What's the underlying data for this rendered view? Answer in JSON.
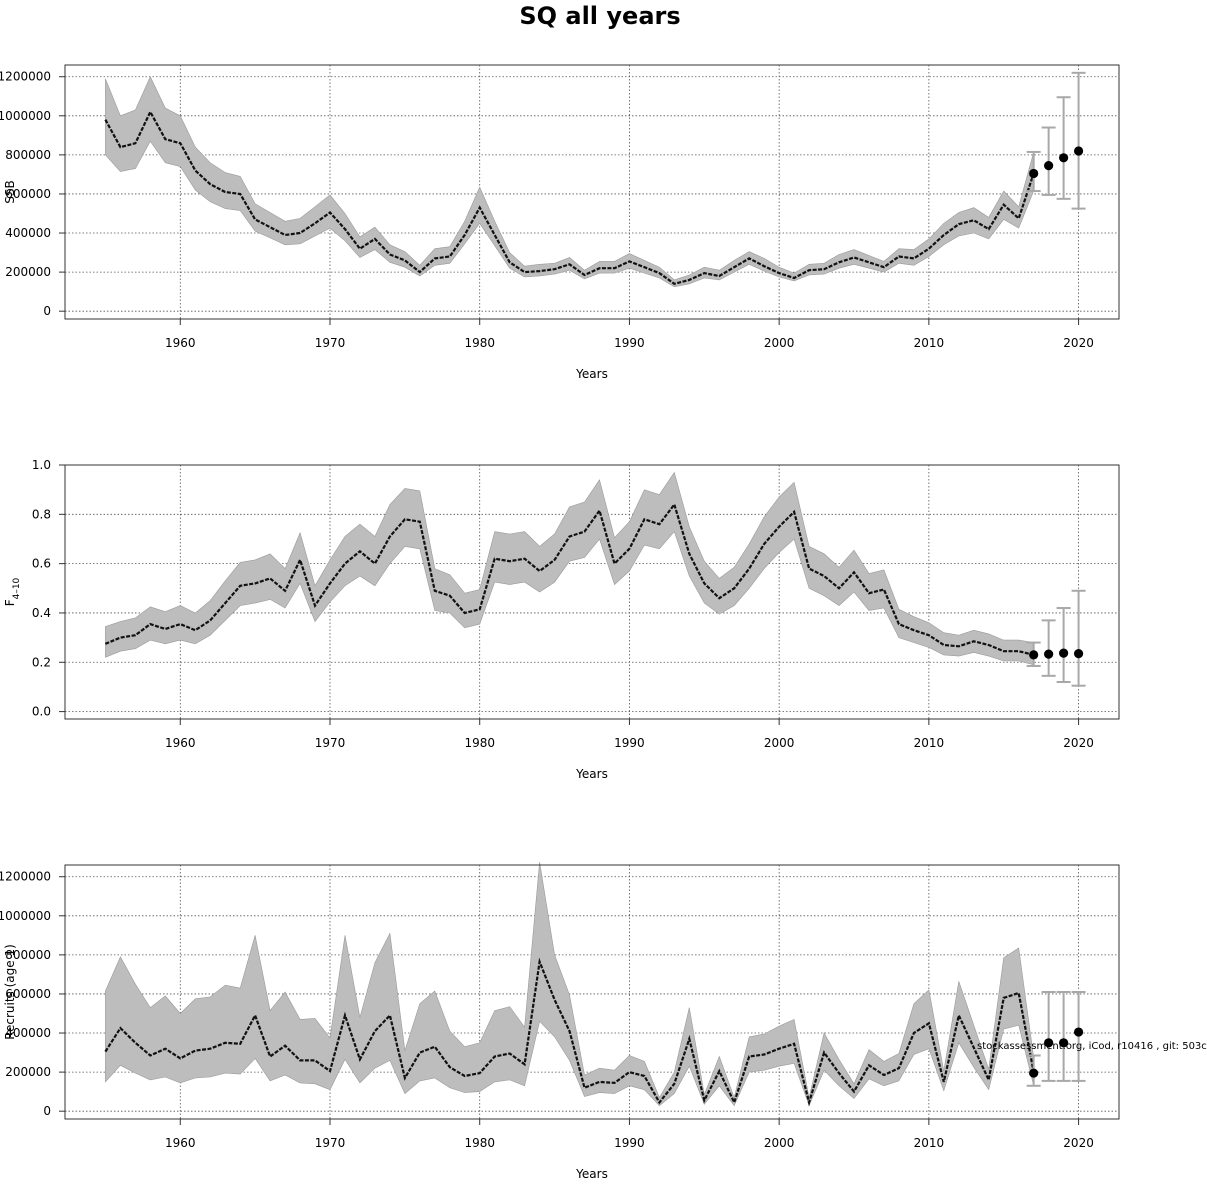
{
  "title": "SQ all years",
  "watermark": "stockassessment.org, iCod, r10416 , git: 503c",
  "chart_data": [
    {
      "type": "line",
      "ylabel": "SSB",
      "xlabel": "Years",
      "xlim": [
        1952.3,
        2022.7
      ],
      "ylim": [
        -40000,
        1260000
      ],
      "xticks": [
        1960,
        1970,
        1980,
        1990,
        2000,
        2010,
        2020
      ],
      "yticks": [
        0,
        200000,
        400000,
        600000,
        800000,
        1000000,
        1200000
      ],
      "ytick_labels": [
        "0",
        "200000",
        "400000",
        "600000",
        "800000",
        "1000000",
        "1200000"
      ],
      "grid": true,
      "x": [
        1955,
        1956,
        1957,
        1958,
        1959,
        1960,
        1961,
        1962,
        1963,
        1964,
        1965,
        1966,
        1967,
        1968,
        1969,
        1970,
        1971,
        1972,
        1973,
        1974,
        1975,
        1976,
        1977,
        1978,
        1979,
        1980,
        1981,
        1982,
        1983,
        1984,
        1985,
        1986,
        1987,
        1988,
        1989,
        1990,
        1991,
        1992,
        1993,
        1994,
        1995,
        1996,
        1997,
        1998,
        1999,
        2000,
        2001,
        2002,
        2003,
        2004,
        2005,
        2006,
        2007,
        2008,
        2009,
        2010,
        2011,
        2012,
        2013,
        2014,
        2015,
        2016,
        2017
      ],
      "estimate": [
        980000,
        840000,
        860000,
        1020000,
        880000,
        860000,
        720000,
        650000,
        610000,
        600000,
        470000,
        430000,
        390000,
        400000,
        450000,
        505000,
        420000,
        320000,
        370000,
        290000,
        260000,
        200000,
        270000,
        280000,
        390000,
        530000,
        390000,
        250000,
        200000,
        205000,
        215000,
        240000,
        185000,
        220000,
        220000,
        255000,
        225000,
        195000,
        140000,
        160000,
        195000,
        180000,
        225000,
        270000,
        230000,
        195000,
        170000,
        210000,
        215000,
        250000,
        275000,
        250000,
        225000,
        280000,
        270000,
        320000,
        390000,
        445000,
        465000,
        420000,
        545000,
        475000,
        705000
      ],
      "lower": [
        800000,
        715000,
        730000,
        870000,
        760000,
        740000,
        620000,
        560000,
        525000,
        515000,
        410000,
        375000,
        340000,
        345000,
        385000,
        425000,
        360000,
        275000,
        315000,
        250000,
        225000,
        180000,
        235000,
        245000,
        345000,
        450000,
        335000,
        220000,
        175000,
        180000,
        190000,
        210000,
        165000,
        195000,
        195000,
        220000,
        195000,
        170000,
        125000,
        140000,
        170000,
        160000,
        200000,
        240000,
        205000,
        175000,
        155000,
        185000,
        190000,
        220000,
        240000,
        220000,
        200000,
        245000,
        235000,
        280000,
        340000,
        385000,
        400000,
        370000,
        470000,
        425000,
        615000
      ],
      "upper": [
        1190000,
        1000000,
        1030000,
        1200000,
        1040000,
        1000000,
        840000,
        760000,
        710000,
        690000,
        550000,
        505000,
        460000,
        475000,
        535000,
        595000,
        500000,
        380000,
        430000,
        340000,
        305000,
        235000,
        320000,
        330000,
        460000,
        635000,
        460000,
        300000,
        230000,
        240000,
        245000,
        275000,
        210000,
        255000,
        255000,
        295000,
        260000,
        225000,
        160000,
        185000,
        225000,
        210000,
        260000,
        305000,
        270000,
        225000,
        195000,
        240000,
        245000,
        290000,
        315000,
        285000,
        255000,
        320000,
        315000,
        370000,
        450000,
        505000,
        530000,
        480000,
        615000,
        535000,
        815000
      ],
      "forecast": {
        "x": [
          2017,
          2018,
          2019,
          2020
        ],
        "median": [
          705000,
          745000,
          785000,
          820000
        ],
        "lower": [
          615000,
          595000,
          575000,
          525000
        ],
        "upper": [
          815000,
          940000,
          1095000,
          1220000
        ]
      }
    },
    {
      "type": "line",
      "ylabel": "F4–10",
      "xlabel": "Years",
      "xlim": [
        1952.3,
        2022.7
      ],
      "ylim": [
        -0.03,
        1.0
      ],
      "xticks": [
        1960,
        1970,
        1980,
        1990,
        2000,
        2010,
        2020
      ],
      "yticks": [
        0,
        0.2,
        0.4,
        0.6,
        0.8,
        1.0
      ],
      "ytick_labels": [
        "0.0",
        "0.2",
        "0.4",
        "0.6",
        "0.8",
        "1.0"
      ],
      "grid": true,
      "x": [
        1955,
        1956,
        1957,
        1958,
        1959,
        1960,
        1961,
        1962,
        1963,
        1964,
        1965,
        1966,
        1967,
        1968,
        1969,
        1970,
        1971,
        1972,
        1973,
        1974,
        1975,
        1976,
        1977,
        1978,
        1979,
        1980,
        1981,
        1982,
        1983,
        1984,
        1985,
        1986,
        1987,
        1988,
        1989,
        1990,
        1991,
        1992,
        1993,
        1994,
        1995,
        1996,
        1997,
        1998,
        1999,
        2000,
        2001,
        2002,
        2003,
        2004,
        2005,
        2006,
        2007,
        2008,
        2009,
        2010,
        2011,
        2012,
        2013,
        2014,
        2015,
        2016,
        2017
      ],
      "estimate": [
        0.275,
        0.3,
        0.31,
        0.355,
        0.335,
        0.355,
        0.33,
        0.37,
        0.44,
        0.51,
        0.52,
        0.54,
        0.49,
        0.615,
        0.43,
        0.52,
        0.6,
        0.65,
        0.6,
        0.71,
        0.78,
        0.77,
        0.49,
        0.47,
        0.4,
        0.415,
        0.62,
        0.61,
        0.62,
        0.57,
        0.615,
        0.71,
        0.73,
        0.815,
        0.6,
        0.66,
        0.78,
        0.76,
        0.84,
        0.64,
        0.52,
        0.46,
        0.5,
        0.58,
        0.68,
        0.75,
        0.81,
        0.58,
        0.55,
        0.5,
        0.565,
        0.48,
        0.495,
        0.355,
        0.33,
        0.31,
        0.27,
        0.265,
        0.285,
        0.27,
        0.245,
        0.245,
        0.23
      ],
      "lower": [
        0.22,
        0.245,
        0.255,
        0.29,
        0.275,
        0.29,
        0.275,
        0.31,
        0.37,
        0.43,
        0.44,
        0.455,
        0.42,
        0.52,
        0.365,
        0.445,
        0.51,
        0.55,
        0.51,
        0.6,
        0.67,
        0.66,
        0.41,
        0.4,
        0.34,
        0.355,
        0.525,
        0.515,
        0.525,
        0.485,
        0.525,
        0.61,
        0.625,
        0.7,
        0.515,
        0.57,
        0.675,
        0.66,
        0.73,
        0.55,
        0.44,
        0.395,
        0.43,
        0.5,
        0.58,
        0.645,
        0.7,
        0.5,
        0.47,
        0.43,
        0.485,
        0.41,
        0.42,
        0.3,
        0.28,
        0.26,
        0.23,
        0.225,
        0.24,
        0.225,
        0.205,
        0.205,
        0.19
      ],
      "upper": [
        0.345,
        0.365,
        0.38,
        0.425,
        0.405,
        0.43,
        0.4,
        0.45,
        0.53,
        0.605,
        0.615,
        0.64,
        0.58,
        0.725,
        0.51,
        0.615,
        0.71,
        0.76,
        0.71,
        0.84,
        0.905,
        0.895,
        0.58,
        0.555,
        0.48,
        0.495,
        0.73,
        0.72,
        0.73,
        0.67,
        0.72,
        0.83,
        0.85,
        0.94,
        0.705,
        0.77,
        0.9,
        0.88,
        0.97,
        0.75,
        0.61,
        0.54,
        0.585,
        0.68,
        0.79,
        0.87,
        0.93,
        0.67,
        0.64,
        0.585,
        0.655,
        0.56,
        0.575,
        0.415,
        0.385,
        0.36,
        0.32,
        0.31,
        0.33,
        0.315,
        0.29,
        0.29,
        0.28
      ],
      "forecast": {
        "x": [
          2017,
          2018,
          2019,
          2020
        ],
        "median": [
          0.23,
          0.233,
          0.237,
          0.235
        ],
        "lower": [
          0.185,
          0.145,
          0.12,
          0.105
        ],
        "upper": [
          0.28,
          0.37,
          0.42,
          0.49
        ]
      }
    },
    {
      "type": "line",
      "ylabel": "Recruits (age 1)",
      "xlabel": "Years",
      "xlim": [
        1952.3,
        2022.7
      ],
      "ylim": [
        -40000,
        1260000
      ],
      "xticks": [
        1960,
        1970,
        1980,
        1990,
        2000,
        2010,
        2020
      ],
      "yticks": [
        0,
        200000,
        400000,
        600000,
        800000,
        1000000,
        1200000
      ],
      "ytick_labels": [
        "0",
        "200000",
        "400000",
        "600000",
        "800000",
        "1000000",
        "1200000"
      ],
      "grid": true,
      "x": [
        1955,
        1956,
        1957,
        1958,
        1959,
        1960,
        1961,
        1962,
        1963,
        1964,
        1965,
        1966,
        1967,
        1968,
        1969,
        1970,
        1971,
        1972,
        1973,
        1974,
        1975,
        1976,
        1977,
        1978,
        1979,
        1980,
        1981,
        1982,
        1983,
        1984,
        1985,
        1986,
        1987,
        1988,
        1989,
        1990,
        1991,
        1992,
        1993,
        1994,
        1995,
        1996,
        1997,
        1998,
        1999,
        2000,
        2001,
        2002,
        2003,
        2004,
        2005,
        2006,
        2007,
        2008,
        2009,
        2010,
        2011,
        2012,
        2013,
        2014,
        2015,
        2016,
        2017
      ],
      "estimate": [
        305000,
        425000,
        350000,
        285000,
        320000,
        270000,
        310000,
        320000,
        350000,
        345000,
        490000,
        280000,
        335000,
        260000,
        260000,
        205000,
        490000,
        265000,
        410000,
        490000,
        170000,
        300000,
        330000,
        225000,
        180000,
        195000,
        280000,
        295000,
        240000,
        765000,
        570000,
        410000,
        120000,
        150000,
        145000,
        200000,
        180000,
        45000,
        140000,
        370000,
        55000,
        205000,
        45000,
        280000,
        290000,
        320000,
        345000,
        45000,
        300000,
        195000,
        100000,
        235000,
        185000,
        220000,
        400000,
        450000,
        150000,
        490000,
        325000,
        160000,
        580000,
        605000,
        200000
      ],
      "lower": [
        150000,
        235000,
        195000,
        160000,
        175000,
        145000,
        170000,
        175000,
        195000,
        190000,
        270000,
        155000,
        185000,
        145000,
        140000,
        110000,
        265000,
        145000,
        220000,
        260000,
        90000,
        155000,
        170000,
        120000,
        95000,
        100000,
        150000,
        160000,
        130000,
        460000,
        380000,
        260000,
        75000,
        95000,
        90000,
        130000,
        110000,
        28000,
        90000,
        230000,
        35000,
        130000,
        28000,
        200000,
        210000,
        230000,
        245000,
        28000,
        210000,
        130000,
        65000,
        165000,
        130000,
        155000,
        290000,
        320000,
        105000,
        350000,
        225000,
        110000,
        420000,
        440000,
        130000
      ],
      "upper": [
        615000,
        790000,
        650000,
        530000,
        590000,
        500000,
        575000,
        585000,
        645000,
        630000,
        900000,
        515000,
        610000,
        470000,
        475000,
        375000,
        900000,
        480000,
        760000,
        910000,
        310000,
        550000,
        615000,
        410000,
        330000,
        350000,
        515000,
        535000,
        430000,
        1275000,
        800000,
        595000,
        185000,
        220000,
        210000,
        285000,
        255000,
        70000,
        200000,
        530000,
        85000,
        280000,
        70000,
        380000,
        395000,
        435000,
        470000,
        70000,
        400000,
        265000,
        140000,
        315000,
        255000,
        295000,
        550000,
        620000,
        205000,
        665000,
        440000,
        215000,
        785000,
        835000,
        275000
      ],
      "forecast": {
        "x": [
          2017,
          2018,
          2019,
          2020
        ],
        "median": [
          195000,
          350000,
          350000,
          405000
        ],
        "lower": [
          130000,
          155000,
          155000,
          155000
        ],
        "upper": [
          285000,
          610000,
          610000,
          610000
        ]
      }
    }
  ]
}
